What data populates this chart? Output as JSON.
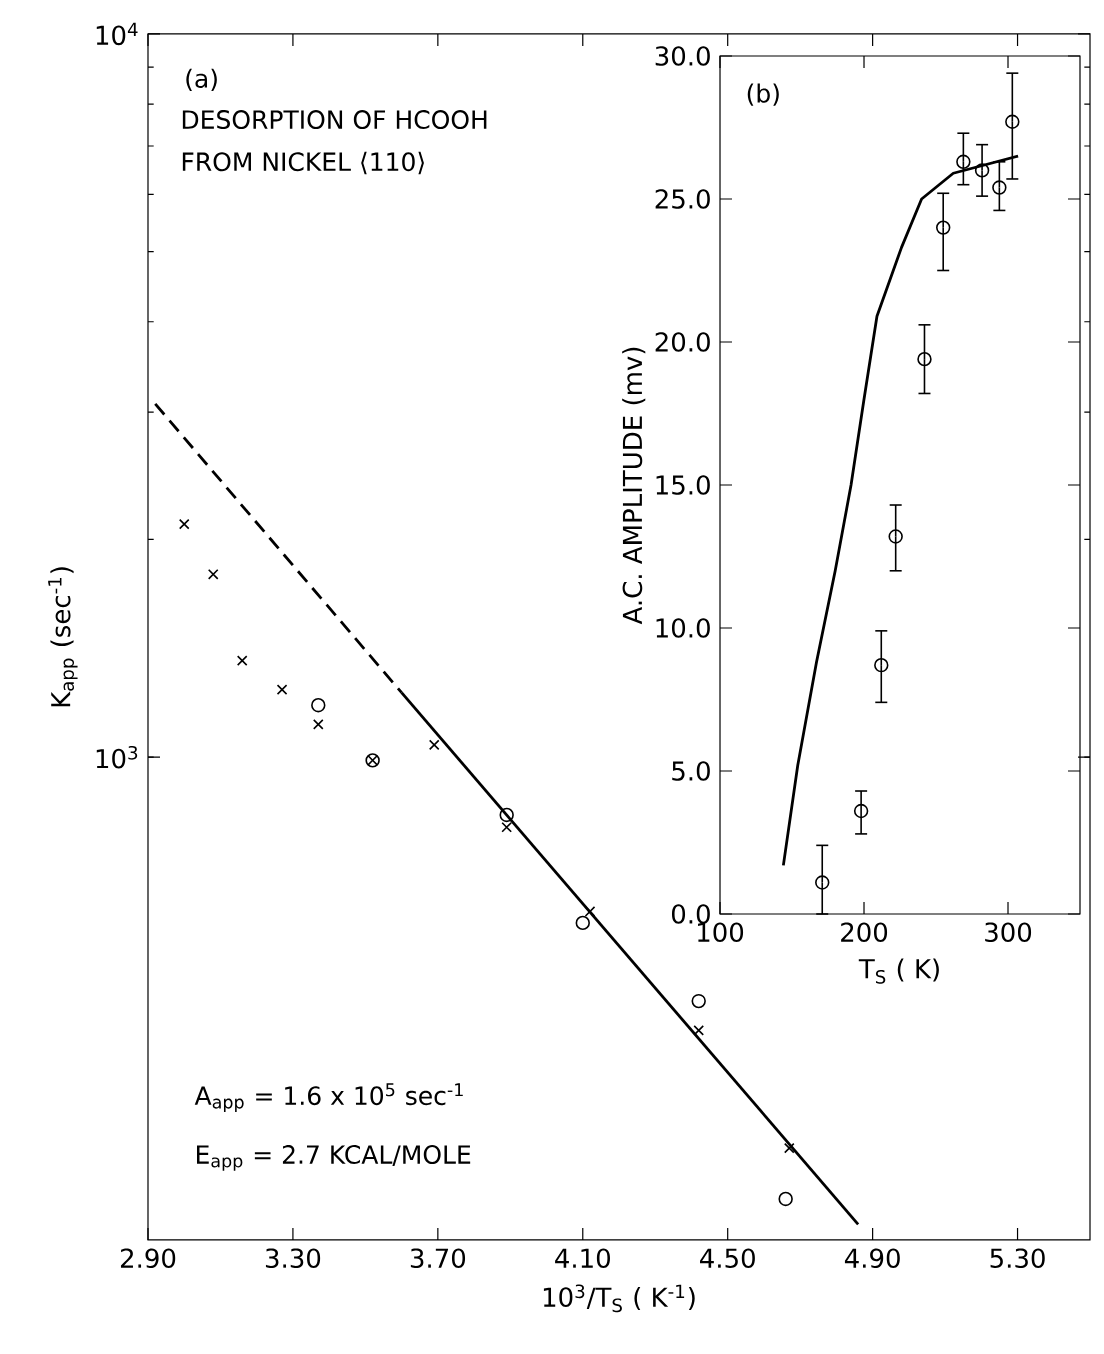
{
  "chart_data": [
    {
      "type": "scatter",
      "xlabel": "10$^{3}$/T$_{S}$ ( K$^{-1}$)",
      "ylabel": "K$_{app}$ (sec$^{-1}$)",
      "log": "y",
      "xlim": [
        2.9,
        5.5
      ],
      "ylim": [
        215,
        10000
      ],
      "xticks": [
        {
          "value": 2.9,
          "label": "2.90"
        },
        {
          "value": 3.3,
          "label": "3.30"
        },
        {
          "value": 3.7,
          "label": "3.70"
        },
        {
          "value": 4.1,
          "label": "4.10"
        },
        {
          "value": 4.5,
          "label": "4.50"
        },
        {
          "value": 4.9,
          "label": "4.90"
        },
        {
          "value": 5.3,
          "label": "5.30"
        }
      ],
      "yticks": [
        {
          "value": 1000,
          "label": "10$^{3}$"
        },
        {
          "value": 10000,
          "label": "10$^{4}$"
        }
      ],
      "annotations": [
        "(a)",
        "DESORPTION OF HCOOH",
        "FROM NICKEL ⟨110⟩",
        "A$_{app}$ = 1.6 x 10$^{5}$ sec$^{-1}$",
        "E$_{app}$ = 2.7 KCAL/MOLE"
      ],
      "series": [
        {
          "type": "scatter",
          "marker": "cross",
          "color": "#000000",
          "x": [
            3.0,
            3.08,
            3.16,
            3.27,
            3.37,
            3.52,
            3.69,
            3.89,
            4.12,
            4.42,
            4.67
          ],
          "values": [
            2100,
            1790,
            1360,
            1240,
            1110,
            990,
            1040,
            800,
            612,
            419,
            288
          ]
        },
        {
          "type": "scatter",
          "marker": "circle",
          "color": "#000000",
          "x": [
            3.37,
            3.52,
            3.89,
            4.1,
            4.42,
            4.66
          ],
          "values": [
            1180,
            990,
            832,
            590,
            460,
            245
          ]
        },
        {
          "type": "line",
          "line_style": "dashed",
          "color": "#000000",
          "x": [
            2.92,
            3.6
          ],
          "values": [
            3080,
            1228
          ]
        },
        {
          "type": "line",
          "line_style": "solid",
          "color": "#000000",
          "x": [
            3.6,
            4.86
          ],
          "values": [
            1228,
            226
          ]
        }
      ]
    },
    {
      "type": "scatter",
      "xlabel": "T$_{S}$ ( K)",
      "ylabel": "A.C. AMPLITUDE (mv)",
      "xlim": [
        100,
        350
      ],
      "ylim": [
        0,
        30
      ],
      "xticks": [
        100,
        200,
        300
      ],
      "yticks": [
        {
          "value": 0,
          "label": "0.0"
        },
        {
          "value": 5,
          "label": "5.0"
        },
        {
          "value": 10,
          "label": "10.0"
        },
        {
          "value": 15,
          "label": "15.0"
        },
        {
          "value": 20,
          "label": "20.0"
        },
        {
          "value": 25,
          "label": "25.0"
        },
        {
          "value": 30,
          "label": "30.0"
        }
      ],
      "annotations": [
        "(b)"
      ],
      "series": [
        {
          "type": "scatter",
          "marker": "circle",
          "color": "#000000",
          "x": [
            171,
            198,
            212,
            222,
            242,
            255,
            269,
            282,
            294,
            303
          ],
          "values": [
            1.1,
            3.6,
            8.7,
            13.2,
            19.4,
            24.0,
            26.3,
            26.0,
            25.4,
            27.7
          ],
          "errors": [
            [
              0.0,
              2.4
            ],
            [
              2.8,
              4.3
            ],
            [
              7.4,
              9.9
            ],
            [
              12.0,
              14.3
            ],
            [
              18.2,
              20.6
            ],
            [
              22.5,
              25.2
            ],
            [
              25.5,
              27.3
            ],
            [
              25.1,
              26.9
            ],
            [
              24.6,
              26.3
            ],
            [
              25.7,
              29.4
            ]
          ]
        },
        {
          "type": "line",
          "line_style": "solid",
          "color": "#000000",
          "x": [
            144,
            154,
            167,
            180,
            191,
            200,
            209,
            226,
            240,
            262,
            307
          ],
          "values": [
            1.7,
            5.2,
            8.8,
            12.0,
            15.0,
            18.0,
            20.9,
            23.3,
            25.0,
            25.9,
            26.5
          ]
        }
      ]
    }
  ]
}
